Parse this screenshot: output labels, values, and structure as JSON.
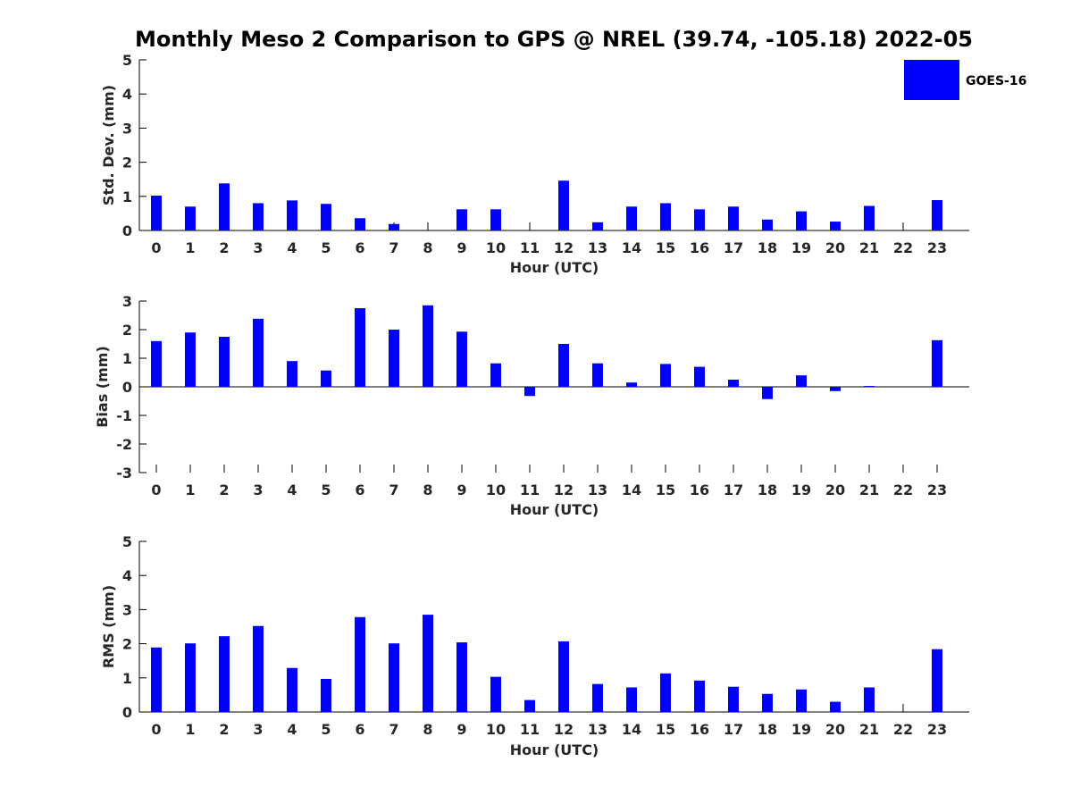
{
  "title": "Monthly Meso 2 Comparison to GPS @ NREL (39.74, -105.18) 2022-05",
  "colors": {
    "bar": "#0000ff",
    "axis": "#000000",
    "tick_text": "#262626"
  },
  "legend": {
    "label": "GOES-16",
    "color": "#0000ff",
    "placement": "top-right"
  },
  "chart_data": [
    {
      "type": "bar",
      "title": "",
      "xlabel": "Hour (UTC)",
      "ylabel": "Std. Dev. (mm)",
      "ylim": [
        0,
        5
      ],
      "yticks": [
        "0",
        "1",
        "2",
        "3",
        "4",
        "5"
      ],
      "categories": [
        "0",
        "1",
        "2",
        "3",
        "4",
        "5",
        "6",
        "7",
        "8",
        "9",
        "10",
        "11",
        "12",
        "13",
        "14",
        "15",
        "16",
        "17",
        "18",
        "19",
        "20",
        "21",
        "22",
        "23"
      ],
      "series": [
        {
          "name": "GOES-16",
          "values": [
            1.02,
            0.7,
            1.38,
            0.8,
            0.88,
            0.78,
            0.36,
            0.19,
            null,
            0.62,
            0.62,
            null,
            1.46,
            0.24,
            0.7,
            0.8,
            0.62,
            0.7,
            0.32,
            0.56,
            0.26,
            0.72,
            null,
            0.89
          ]
        }
      ]
    },
    {
      "type": "bar",
      "title": "",
      "xlabel": "Hour (UTC)",
      "ylabel": "Bias (mm)",
      "ylim": [
        -3,
        3
      ],
      "yticks": [
        "-3",
        "-2",
        "-1",
        "0",
        "1",
        "2",
        "3"
      ],
      "categories": [
        "0",
        "1",
        "2",
        "3",
        "4",
        "5",
        "6",
        "7",
        "8",
        "9",
        "10",
        "11",
        "12",
        "13",
        "14",
        "15",
        "16",
        "17",
        "18",
        "19",
        "20",
        "21",
        "22",
        "23"
      ],
      "series": [
        {
          "name": "GOES-16",
          "values": [
            1.6,
            1.9,
            1.75,
            2.38,
            0.9,
            0.57,
            2.75,
            2.0,
            2.85,
            1.93,
            0.82,
            -0.32,
            1.5,
            0.82,
            0.15,
            0.8,
            0.7,
            0.25,
            -0.43,
            0.4,
            -0.15,
            0.03,
            null,
            1.63
          ]
        }
      ]
    },
    {
      "type": "bar",
      "title": "",
      "xlabel": "Hour (UTC)",
      "ylabel": "RMS (mm)",
      "ylim": [
        0,
        5
      ],
      "yticks": [
        "0",
        "1",
        "2",
        "3",
        "4",
        "5"
      ],
      "categories": [
        "0",
        "1",
        "2",
        "3",
        "4",
        "5",
        "6",
        "7",
        "8",
        "9",
        "10",
        "11",
        "12",
        "13",
        "14",
        "15",
        "16",
        "17",
        "18",
        "19",
        "20",
        "21",
        "22",
        "23"
      ],
      "series": [
        {
          "name": "GOES-16",
          "values": [
            1.89,
            2.01,
            2.22,
            2.52,
            1.29,
            0.97,
            2.78,
            2.01,
            2.85,
            2.04,
            1.03,
            0.35,
            2.07,
            0.82,
            0.72,
            1.13,
            0.92,
            0.74,
            0.53,
            0.66,
            0.3,
            0.72,
            null,
            1.84
          ]
        }
      ]
    }
  ]
}
